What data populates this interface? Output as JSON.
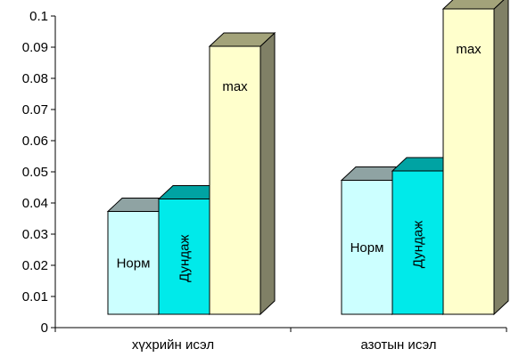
{
  "chart_data": {
    "type": "bar",
    "style": "3d-clustered-column",
    "categories": [
      "хүхрийн исэл",
      "азотын исэл"
    ],
    "series": [
      {
        "name": "Норм",
        "values": [
          0.033,
          0.043
        ],
        "color": "#ccffff",
        "side_color": "#7a8a8a",
        "top_color": "#8fa3a3",
        "label": "Норм",
        "label_rotated": false
      },
      {
        "name": "Дундаж",
        "values": [
          0.037,
          0.046
        ],
        "color": "#00eaea",
        "side_color": "#007a7a",
        "top_color": "#00a3a3",
        "label": "Дундаж",
        "label_rotated": true
      },
      {
        "name": "max",
        "values": [
          0.086,
          0.098
        ],
        "color": "#ffffcc",
        "side_color": "#808066",
        "top_color": "#a3a37a",
        "label": "max",
        "label_rotated": false
      }
    ],
    "ylim": [
      0,
      0.1
    ],
    "yticks": [
      "0",
      "0.01",
      "0.02",
      "0.03",
      "0.04",
      "0.05",
      "0.06",
      "0.07",
      "0.08",
      "0.09",
      "0.1"
    ],
    "grid": false,
    "legend": "none"
  }
}
